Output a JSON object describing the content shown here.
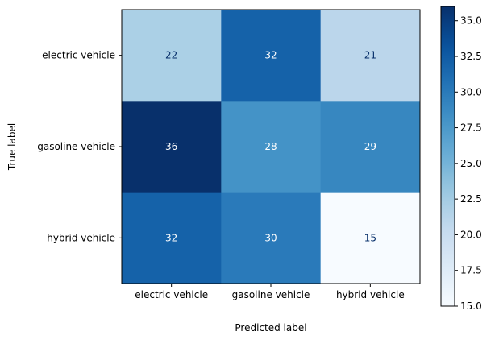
{
  "chart_data": {
    "type": "heatmap",
    "title": "",
    "xlabel": "Predicted label",
    "ylabel": "True label",
    "x_categories": [
      "electric vehicle",
      "gasoline vehicle",
      "hybrid vehicle"
    ],
    "y_categories": [
      "electric vehicle",
      "gasoline vehicle",
      "hybrid vehicle"
    ],
    "values": [
      [
        22,
        32,
        21
      ],
      [
        36,
        28,
        29
      ],
      [
        32,
        30,
        15
      ]
    ],
    "colormap": "Blues",
    "color_range": [
      15,
      36
    ],
    "colorbar_ticks": [
      "15.0",
      "17.5",
      "20.0",
      "22.5",
      "25.0",
      "27.5",
      "30.0",
      "32.5",
      "35.0"
    ],
    "cell_label_colors": {
      "light": "#ffffff",
      "dark": "#08306b"
    }
  }
}
